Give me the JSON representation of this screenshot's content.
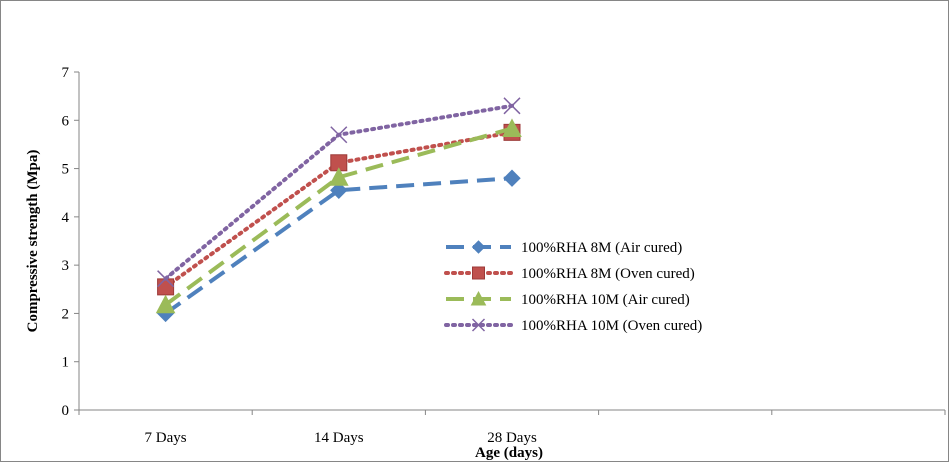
{
  "chart_data": {
    "type": "line",
    "title": "",
    "xlabel": "Age (days)",
    "ylabel": "Compressive strength (Mpa)",
    "categories": [
      "7 Days",
      "14 Days",
      "28 Days"
    ],
    "ylim": [
      0,
      7
    ],
    "yticks": [
      "0",
      "1",
      "2",
      "3",
      "4",
      "5",
      "6",
      "7"
    ],
    "grid": false,
    "legend_position": "center-right",
    "series": [
      {
        "name": "100%RHA 8M (Air cured)",
        "values": [
          2.0,
          4.55,
          4.8
        ],
        "color": "#4F81BD",
        "dash": "long-dash",
        "marker": "diamond"
      },
      {
        "name": "100%RHA 8M (Oven cured)",
        "values": [
          2.55,
          5.12,
          5.75
        ],
        "color": "#C0504D",
        "dash": "dot",
        "marker": "square"
      },
      {
        "name": "100%RHA 10M (Air cured)",
        "values": [
          2.18,
          4.82,
          5.83
        ],
        "color": "#9BBB59",
        "dash": "long-dash",
        "marker": "triangle"
      },
      {
        "name": "100%RHA 10M (Oven cured)",
        "values": [
          2.72,
          5.7,
          6.3
        ],
        "color": "#8064A2",
        "dash": "dot",
        "marker": "x"
      }
    ]
  }
}
